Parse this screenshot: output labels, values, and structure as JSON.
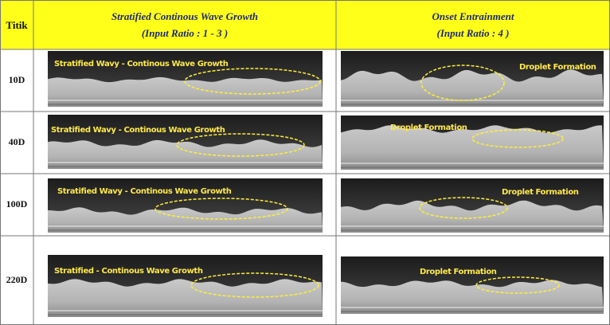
{
  "header": {
    "col0": "Titik",
    "col1_line1": "Stratified Continous Wave Growth",
    "col1_line2": "(Input Ratio : 1 - 3 )",
    "col2_line1": "Onset Entrainment",
    "col2_line2": "(Input Ratio : 4 )"
  },
  "rows": [
    {
      "label": "10D",
      "left": "Stratified Wavy - Continous Wave Growth",
      "right": "Droplet Formation"
    },
    {
      "label": "40D",
      "left": "Stratified Wavy - Continous Wave Growth",
      "right": "Droplet Formation"
    },
    {
      "label": "100D",
      "left": "Stratified Wavy - Continous Wave Growth",
      "right": "Droplet Formation"
    },
    {
      "label": "220D",
      "left": "Stratified - Continous Wave Growth",
      "right": "Droplet Formation"
    }
  ]
}
